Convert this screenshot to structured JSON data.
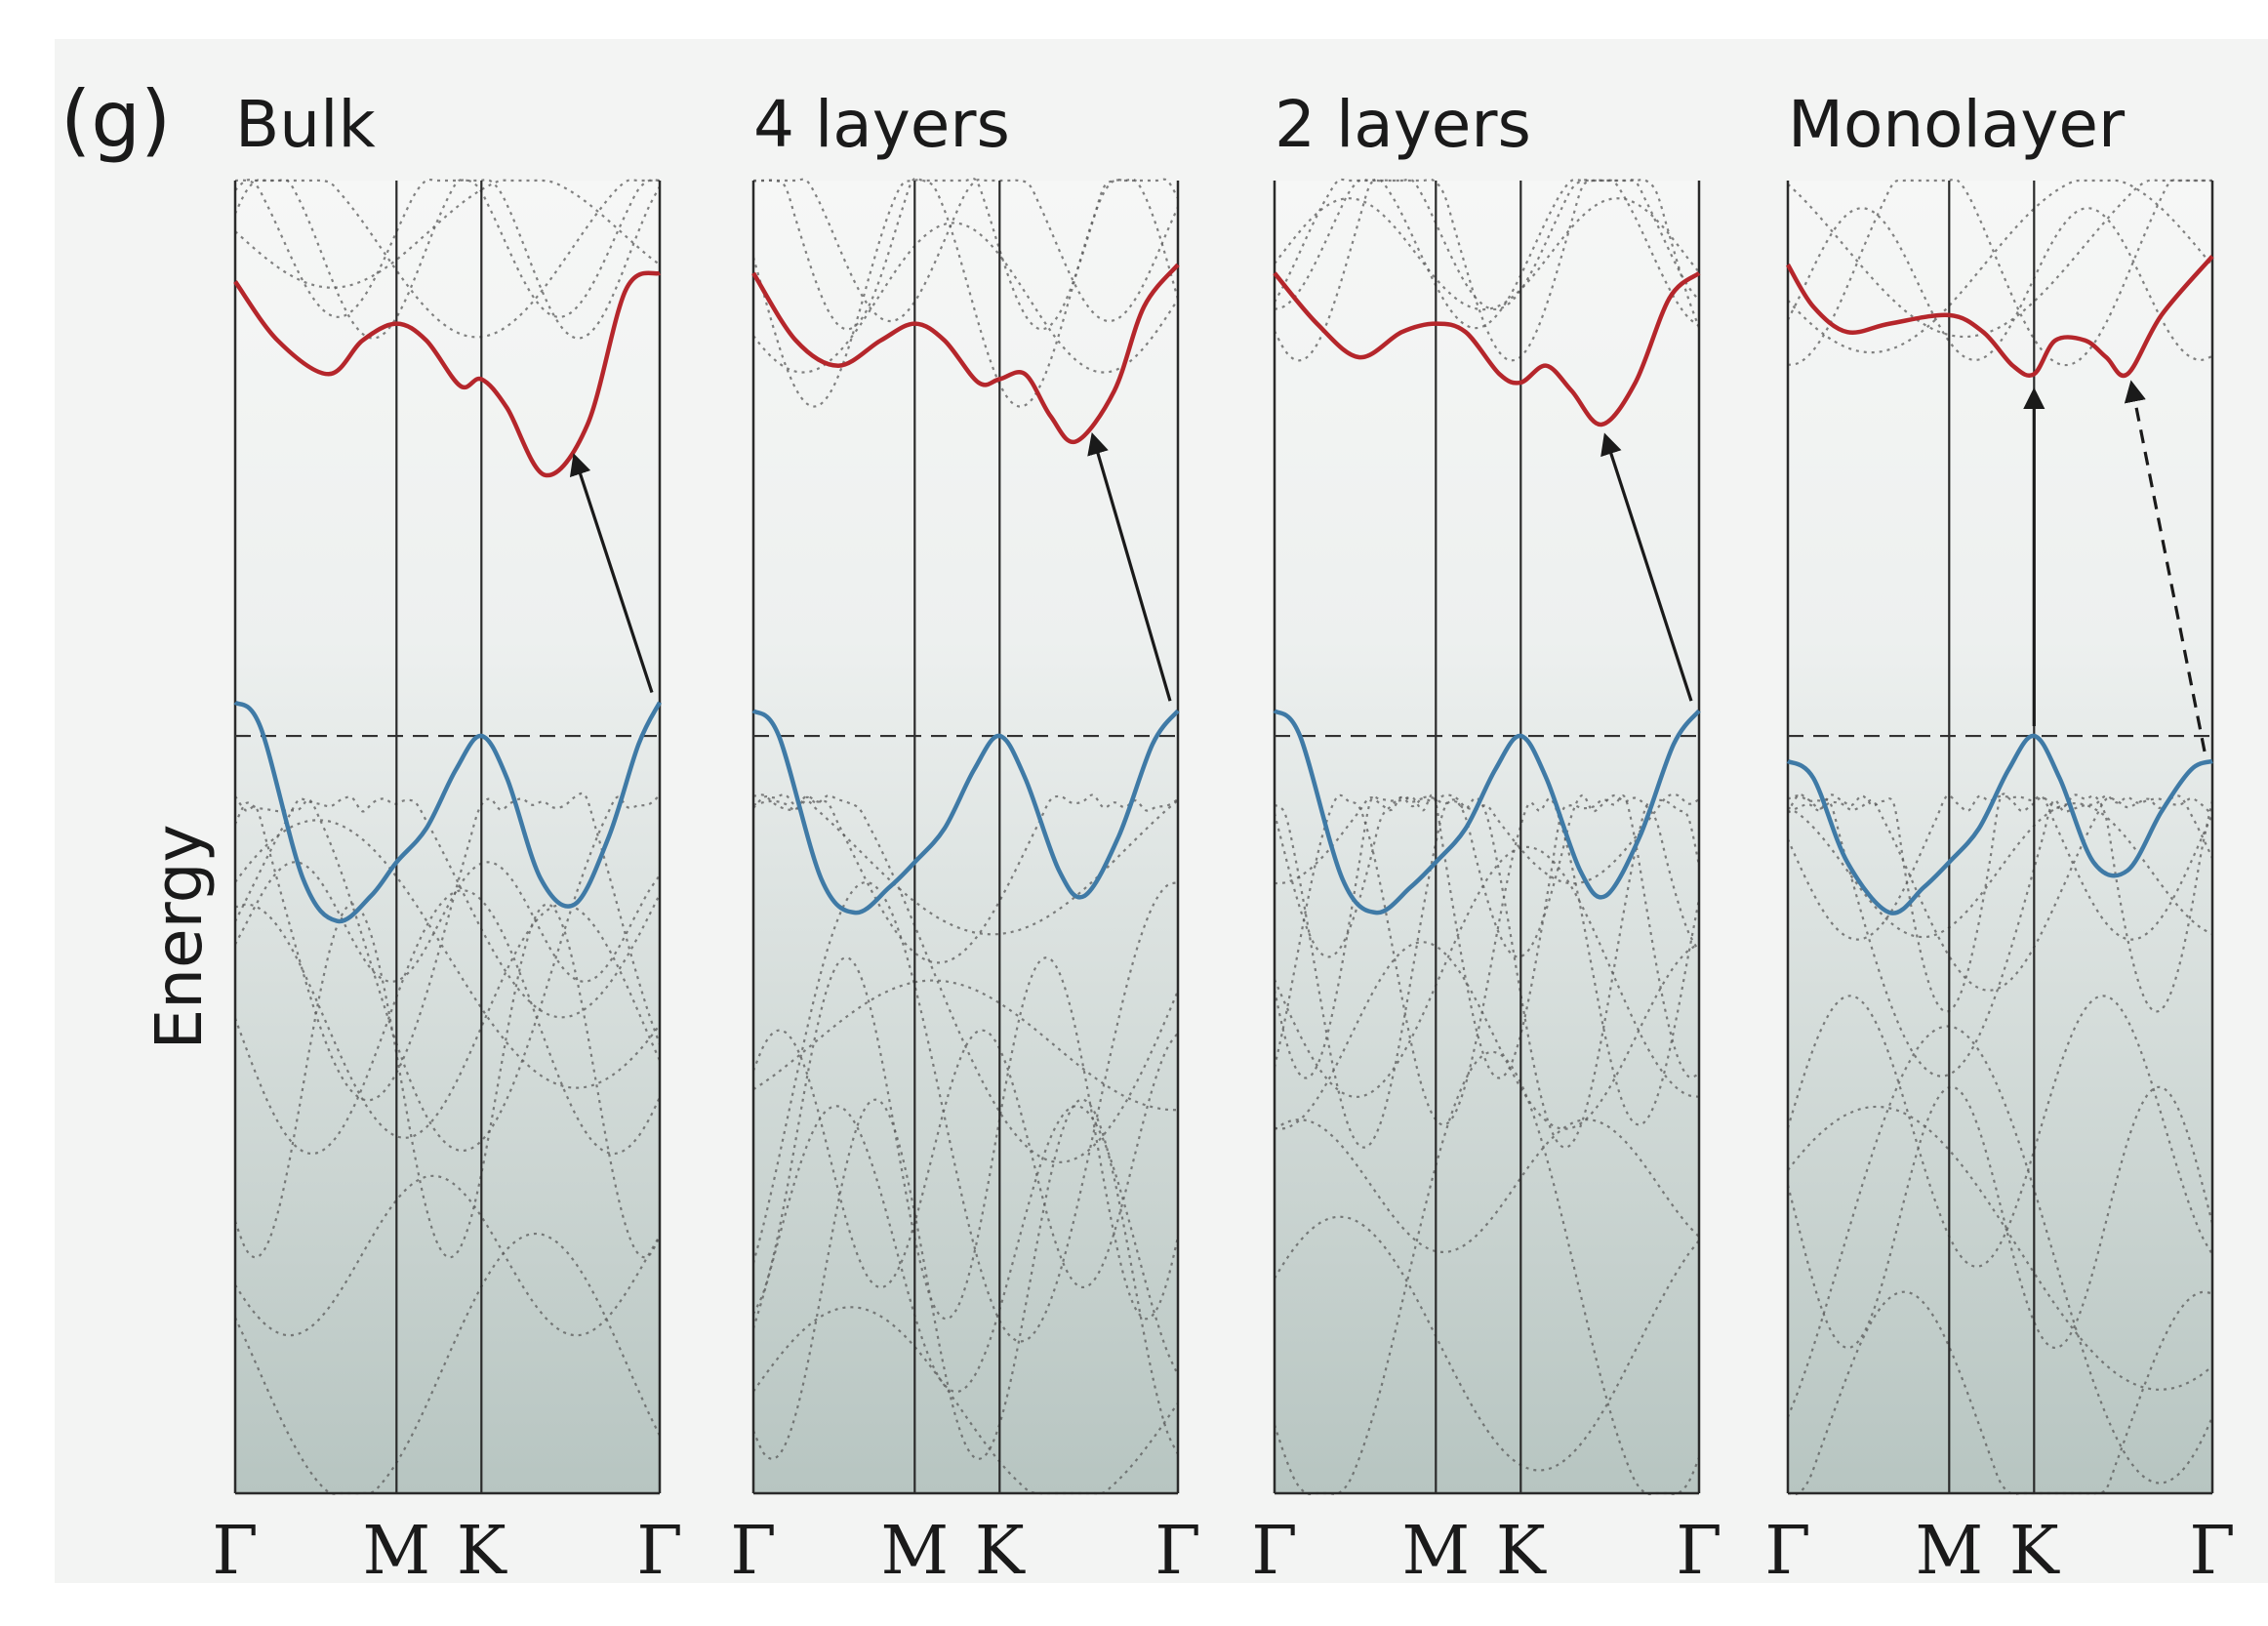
{
  "chart_data": {
    "type": "line",
    "panel_label": "(g)",
    "ylabel": "Energy",
    "grid": false,
    "colors": {
      "conduction": "#b5262b",
      "valence": "#3f7aa6",
      "other_bands": "#5a5a5a",
      "panel_top": "#f6f7f6",
      "panel_bottom": "#b7c5c1"
    },
    "k_ticks": [
      "Γ",
      "M",
      "K",
      "Γ"
    ],
    "k_tick_positions": [
      0,
      0.38,
      0.58,
      1.0
    ],
    "panels": [
      {
        "title": "Bulk",
        "conduction_band": [
          [
            0,
            2.7
          ],
          [
            0.1,
            2.35
          ],
          [
            0.22,
            2.15
          ],
          [
            0.3,
            2.35
          ],
          [
            0.38,
            2.45
          ],
          [
            0.45,
            2.35
          ],
          [
            0.53,
            2.08
          ],
          [
            0.58,
            2.12
          ],
          [
            0.64,
            1.95
          ],
          [
            0.73,
            1.55
          ],
          [
            0.83,
            1.85
          ],
          [
            0.92,
            2.65
          ],
          [
            1.0,
            2.75
          ]
        ],
        "valence_band": [
          [
            0,
            0.2
          ],
          [
            0.06,
            0.05
          ],
          [
            0.16,
            -0.85
          ],
          [
            0.24,
            -1.1
          ],
          [
            0.32,
            -0.95
          ],
          [
            0.38,
            -0.75
          ],
          [
            0.45,
            -0.55
          ],
          [
            0.52,
            -0.2
          ],
          [
            0.58,
            0.0
          ],
          [
            0.64,
            -0.25
          ],
          [
            0.72,
            -0.85
          ],
          [
            0.8,
            -1.0
          ],
          [
            0.88,
            -0.6
          ],
          [
            0.95,
            -0.05
          ],
          [
            1.0,
            0.2
          ]
        ],
        "fermi_level": 0,
        "transition": {
          "from_k": 1.0,
          "to_k": 0.8,
          "style": "solid",
          "kind": "indirect"
        }
      },
      {
        "title": "4 layers",
        "conduction_band": [
          [
            0,
            2.75
          ],
          [
            0.1,
            2.35
          ],
          [
            0.2,
            2.2
          ],
          [
            0.3,
            2.35
          ],
          [
            0.38,
            2.45
          ],
          [
            0.45,
            2.35
          ],
          [
            0.53,
            2.1
          ],
          [
            0.58,
            2.12
          ],
          [
            0.64,
            2.15
          ],
          [
            0.7,
            1.9
          ],
          [
            0.76,
            1.75
          ],
          [
            0.85,
            2.05
          ],
          [
            0.92,
            2.55
          ],
          [
            1.0,
            2.8
          ]
        ],
        "valence_band": [
          [
            0,
            0.15
          ],
          [
            0.06,
            0.0
          ],
          [
            0.16,
            -0.85
          ],
          [
            0.24,
            -1.05
          ],
          [
            0.32,
            -0.9
          ],
          [
            0.38,
            -0.75
          ],
          [
            0.45,
            -0.55
          ],
          [
            0.52,
            -0.2
          ],
          [
            0.58,
            0.0
          ],
          [
            0.64,
            -0.25
          ],
          [
            0.72,
            -0.8
          ],
          [
            0.78,
            -0.95
          ],
          [
            0.86,
            -0.6
          ],
          [
            0.94,
            -0.05
          ],
          [
            1.0,
            0.15
          ]
        ],
        "fermi_level": 0,
        "transition": {
          "from_k": 1.0,
          "to_k": 0.8,
          "style": "solid",
          "kind": "indirect"
        }
      },
      {
        "title": "2 layers",
        "conduction_band": [
          [
            0,
            2.75
          ],
          [
            0.1,
            2.45
          ],
          [
            0.2,
            2.25
          ],
          [
            0.3,
            2.4
          ],
          [
            0.38,
            2.45
          ],
          [
            0.45,
            2.4
          ],
          [
            0.53,
            2.15
          ],
          [
            0.58,
            2.1
          ],
          [
            0.64,
            2.2
          ],
          [
            0.7,
            2.05
          ],
          [
            0.77,
            1.85
          ],
          [
            0.85,
            2.1
          ],
          [
            0.93,
            2.6
          ],
          [
            1.0,
            2.75
          ]
        ],
        "valence_band": [
          [
            0,
            0.15
          ],
          [
            0.06,
            0.0
          ],
          [
            0.16,
            -0.85
          ],
          [
            0.24,
            -1.05
          ],
          [
            0.32,
            -0.9
          ],
          [
            0.38,
            -0.75
          ],
          [
            0.45,
            -0.55
          ],
          [
            0.52,
            -0.2
          ],
          [
            0.58,
            0.0
          ],
          [
            0.64,
            -0.25
          ],
          [
            0.72,
            -0.8
          ],
          [
            0.78,
            -0.95
          ],
          [
            0.86,
            -0.6
          ],
          [
            0.94,
            -0.05
          ],
          [
            1.0,
            0.15
          ]
        ],
        "fermi_level": 0,
        "transition": {
          "from_k": 1.0,
          "to_k": 0.78,
          "style": "solid",
          "kind": "indirect"
        }
      },
      {
        "title": "Monolayer",
        "conduction_band": [
          [
            0,
            2.8
          ],
          [
            0.06,
            2.55
          ],
          [
            0.14,
            2.4
          ],
          [
            0.24,
            2.45
          ],
          [
            0.38,
            2.5
          ],
          [
            0.46,
            2.4
          ],
          [
            0.53,
            2.2
          ],
          [
            0.58,
            2.15
          ],
          [
            0.63,
            2.35
          ],
          [
            0.7,
            2.35
          ],
          [
            0.75,
            2.25
          ],
          [
            0.8,
            2.15
          ],
          [
            0.88,
            2.5
          ],
          [
            1.0,
            2.85
          ]
        ],
        "valence_band": [
          [
            0,
            -0.15
          ],
          [
            0.06,
            -0.25
          ],
          [
            0.14,
            -0.75
          ],
          [
            0.24,
            -1.05
          ],
          [
            0.32,
            -0.9
          ],
          [
            0.38,
            -0.75
          ],
          [
            0.45,
            -0.55
          ],
          [
            0.52,
            -0.2
          ],
          [
            0.58,
            0.0
          ],
          [
            0.64,
            -0.25
          ],
          [
            0.72,
            -0.75
          ],
          [
            0.8,
            -0.8
          ],
          [
            0.88,
            -0.45
          ],
          [
            0.95,
            -0.2
          ],
          [
            1.0,
            -0.15
          ]
        ],
        "fermi_level": 0,
        "transition": {
          "from_k": 0.58,
          "to_k": 0.58,
          "style": "solid",
          "kind": "direct"
        },
        "second_transition": {
          "from_k": 1.0,
          "to_k": 0.81,
          "style": "dashed",
          "kind": "indirect"
        }
      }
    ],
    "ylim": [
      -4.5,
      3.3
    ]
  }
}
